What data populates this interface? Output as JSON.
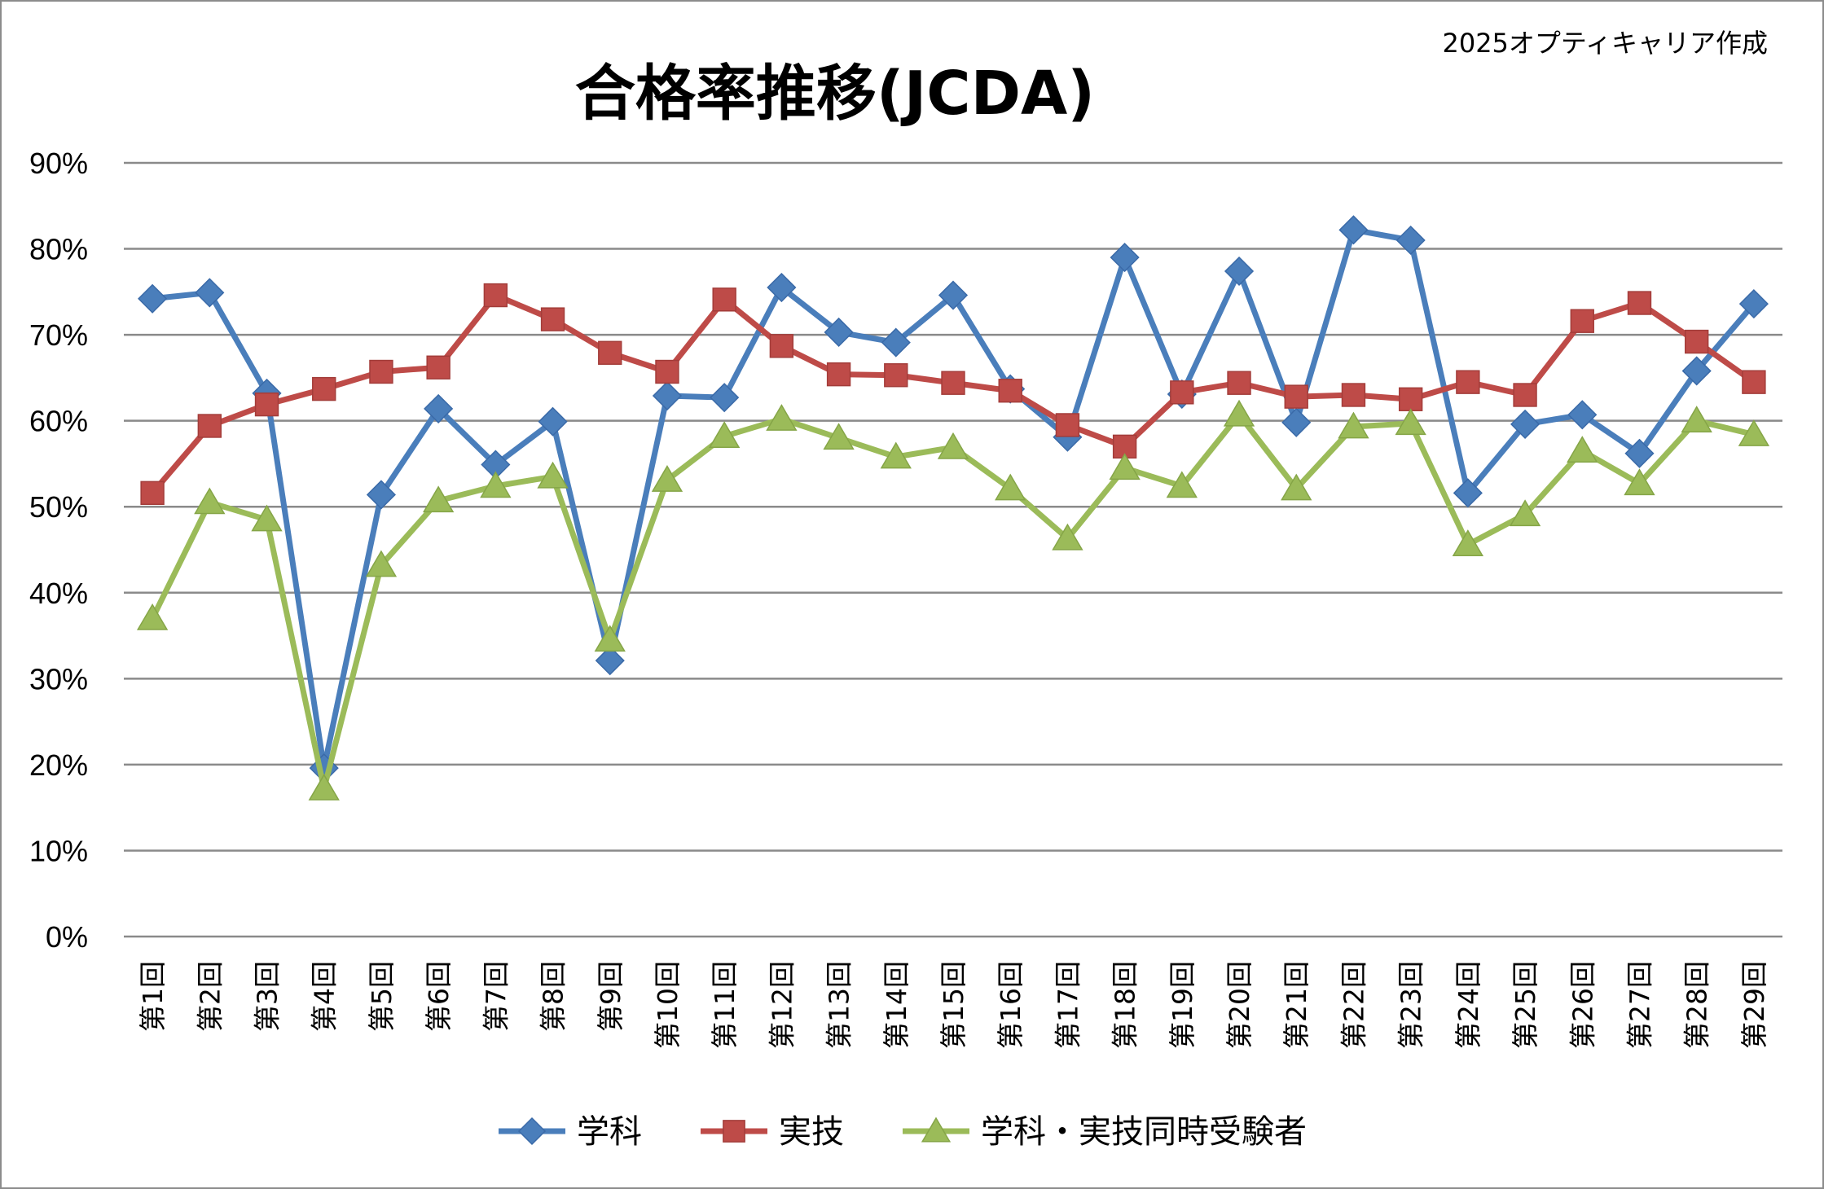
{
  "credit": "2025オプティキャリア作成",
  "chart_data": {
    "type": "line",
    "title": "合格率推移(JCDA)",
    "xlabel": "",
    "ylabel": "",
    "ylim": [
      0,
      90
    ],
    "yticks": [
      "0%",
      "10%",
      "20%",
      "30%",
      "40%",
      "50%",
      "60%",
      "70%",
      "80%",
      "90%"
    ],
    "grid": true,
    "legend_position": "bottom",
    "categories": [
      "第1回",
      "第2回",
      "第3回",
      "第4回",
      "第5回",
      "第6回",
      "第7回",
      "第8回",
      "第9回",
      "第10回",
      "第11回",
      "第12回",
      "第13回",
      "第14回",
      "第15回",
      "第16回",
      "第17回",
      "第18回",
      "第19回",
      "第20回",
      "第21回",
      "第22回",
      "第23回",
      "第24回",
      "第25回",
      "第26回",
      "第27回",
      "第28回",
      "第29回"
    ],
    "series": [
      {
        "name": "学科",
        "color": "#4A7EBB",
        "marker": "diamond",
        "values": [
          74.2,
          74.9,
          63.2,
          19.6,
          51.4,
          61.4,
          54.9,
          59.9,
          32.1,
          62.9,
          62.7,
          75.5,
          70.3,
          69.1,
          74.6,
          63.7,
          58.1,
          79.0,
          63.1,
          77.4,
          59.8,
          82.2,
          81.0,
          51.6,
          59.6,
          60.7,
          56.2,
          65.8,
          73.6
        ]
      },
      {
        "name": "実技",
        "color": "#BE4B48",
        "marker": "square",
        "values": [
          51.6,
          59.4,
          61.9,
          63.7,
          65.7,
          66.2,
          74.6,
          71.8,
          67.9,
          65.7,
          74.1,
          68.7,
          65.4,
          65.3,
          64.4,
          63.5,
          59.5,
          57.0,
          63.3,
          64.4,
          62.8,
          63.0,
          62.5,
          64.5,
          63.0,
          71.6,
          73.7,
          69.2,
          64.5
        ]
      },
      {
        "name": "学科・実技同時受験者",
        "color": "#9BBB59",
        "marker": "triangle",
        "values": [
          37.0,
          50.5,
          48.5,
          17.2,
          43.2,
          50.7,
          52.4,
          53.5,
          34.5,
          53.1,
          58.2,
          60.2,
          58.0,
          55.8,
          56.9,
          52.1,
          46.3,
          54.5,
          52.4,
          60.7,
          52.1,
          59.3,
          59.7,
          45.6,
          49.1,
          56.5,
          52.7,
          60.0,
          58.4
        ]
      }
    ]
  }
}
